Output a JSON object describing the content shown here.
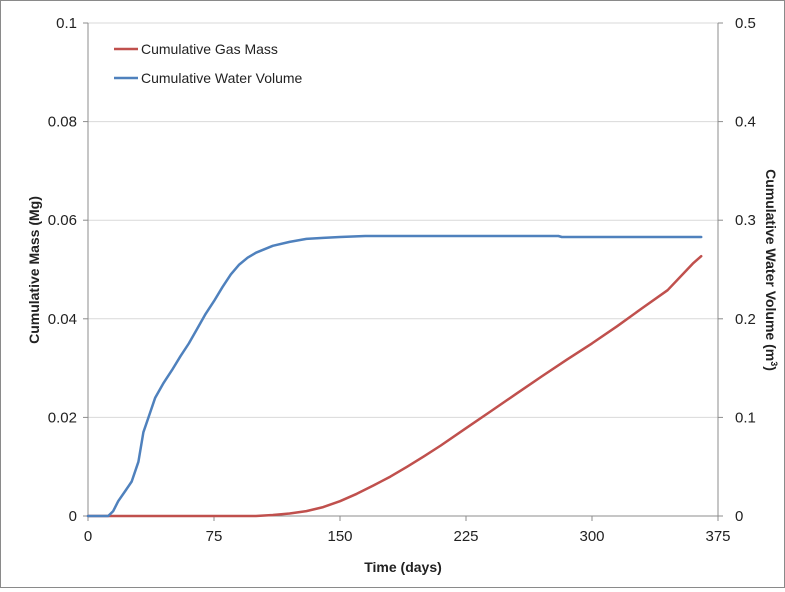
{
  "chart_data": {
    "type": "line",
    "xlabel": "Time (days)",
    "ylabel": "Cumulative Mass (Mg)",
    "ylabel_right": "Cumulative Water Volume (m",
    "ylabel_right_sup": "3",
    "ylabel_right_close": ")",
    "xlim": [
      0,
      375
    ],
    "ylim": [
      0,
      0.1
    ],
    "ylim_right": [
      0,
      0.5
    ],
    "xticks": [
      0,
      75,
      150,
      225,
      300,
      375
    ],
    "xtick_labels": [
      "0",
      "75",
      "150",
      "225",
      "300",
      "375"
    ],
    "yticks": [
      0,
      0.02,
      0.04,
      0.06,
      0.08,
      0.1
    ],
    "ytick_labels": [
      "0",
      "0.02",
      "0.04",
      "0.06",
      "0.08",
      "0.1"
    ],
    "yticks_right": [
      0,
      0.1,
      0.2,
      0.3,
      0.4,
      0.5
    ],
    "ytick_labels_right": [
      "0",
      "0.1",
      "0.2",
      "0.3",
      "0.4",
      "0.5"
    ],
    "grid": true,
    "legend_position": "top-left",
    "series": [
      {
        "name": "Cumulative Gas Mass",
        "axis": "left",
        "color": "#c0504d",
        "x": [
          0,
          80,
          100,
          110,
          120,
          130,
          140,
          150,
          160,
          170,
          180,
          190,
          200,
          210,
          225,
          240,
          255,
          270,
          285,
          300,
          315,
          330,
          345,
          360,
          365
        ],
        "y": [
          0,
          0,
          0,
          0.0002,
          0.0005,
          0.001,
          0.0018,
          0.003,
          0.0045,
          0.0062,
          0.008,
          0.01,
          0.0121,
          0.0143,
          0.0178,
          0.0213,
          0.0248,
          0.0283,
          0.0317,
          0.035,
          0.0385,
          0.0422,
          0.0458,
          0.0512,
          0.0527
        ]
      },
      {
        "name": "Cumulative Water Volume",
        "axis": "right",
        "color": "#4f81bd",
        "x": [
          0,
          12,
          15,
          18,
          22,
          26,
          30,
          33,
          36,
          40,
          45,
          50,
          55,
          60,
          65,
          70,
          75,
          80,
          85,
          90,
          95,
          100,
          110,
          120,
          130,
          140,
          150,
          165,
          200,
          250,
          280,
          282,
          300,
          330,
          365
        ],
        "y": [
          0,
          0,
          0.005,
          0.015,
          0.025,
          0.035,
          0.055,
          0.085,
          0.1,
          0.12,
          0.135,
          0.148,
          0.162,
          0.175,
          0.19,
          0.205,
          0.218,
          0.232,
          0.245,
          0.255,
          0.262,
          0.267,
          0.274,
          0.278,
          0.281,
          0.282,
          0.283,
          0.284,
          0.284,
          0.284,
          0.284,
          0.283,
          0.283,
          0.283,
          0.283
        ]
      }
    ]
  }
}
